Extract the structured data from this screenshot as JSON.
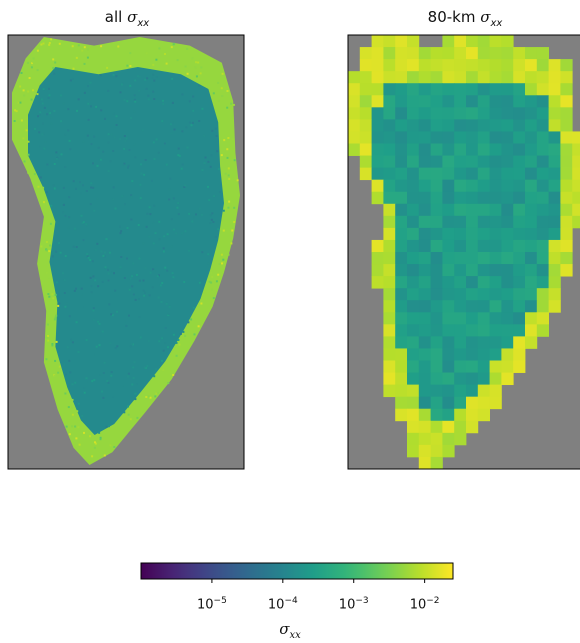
{
  "chart_data": [
    {
      "type": "heatmap",
      "title_prefix": "all",
      "title_symbol": "σ",
      "title_subscript": "xx",
      "map_region": "ice-sheet",
      "resolution": "full",
      "interior_level_log10": -3.9,
      "margin_level_log10": -2.3
    },
    {
      "type": "heatmap",
      "title_prefix": "80-km",
      "title_symbol": "σ",
      "title_subscript": "xx",
      "map_region": "ice-sheet",
      "resolution": "coarse",
      "interior_level_log10": -3.6,
      "margin_level_log10": -2.0
    }
  ],
  "colorbar": {
    "colormap": "viridis",
    "scale": "log",
    "vmin_log10": -6,
    "vmax_log10": -1.6,
    "ticks": [
      {
        "base": "10",
        "exp": "−5",
        "value_log10": -5
      },
      {
        "base": "10",
        "exp": "−4",
        "value_log10": -4
      },
      {
        "base": "10",
        "exp": "−3",
        "value_log10": -3
      },
      {
        "base": "10",
        "exp": "−2",
        "value_log10": -2
      }
    ],
    "label_symbol": "σ",
    "label_subscript": "xx"
  },
  "colors": {
    "background_nodata": "#808080",
    "frame": "#000000"
  }
}
